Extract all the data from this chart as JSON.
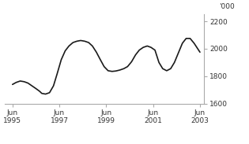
{
  "ylabel": "'000",
  "ylim": [
    1600,
    2250
  ],
  "yticks": [
    1600,
    1800,
    2000,
    2200
  ],
  "xtick_positions": [
    1995.417,
    1997.417,
    1999.417,
    2001.417,
    2003.417
  ],
  "xtick_labels": [
    "Jun\n1995",
    "Jun\n1997",
    "Jun\n1999",
    "Jun\n2001",
    "Jun\n2003"
  ],
  "line_color": "#1a1a1a",
  "line_width": 1.2,
  "axis_color": "#aaaaaa",
  "background_color": "#ffffff",
  "data_x": [
    1995.42,
    1995.58,
    1995.75,
    1995.92,
    1996.08,
    1996.25,
    1996.42,
    1996.58,
    1996.67,
    1996.83,
    1997.0,
    1997.17,
    1997.33,
    1997.5,
    1997.67,
    1997.83,
    1998.0,
    1998.17,
    1998.33,
    1998.5,
    1998.67,
    1998.83,
    1999.0,
    1999.17,
    1999.33,
    1999.5,
    1999.67,
    1999.83,
    2000.0,
    2000.17,
    2000.33,
    2000.5,
    2000.67,
    2000.83,
    2001.0,
    2001.17,
    2001.33,
    2001.5,
    2001.67,
    2001.83,
    2002.0,
    2002.17,
    2002.33,
    2002.5,
    2002.67,
    2002.83,
    2003.0,
    2003.17,
    2003.42
  ],
  "data_y": [
    1740,
    1755,
    1765,
    1760,
    1750,
    1730,
    1710,
    1690,
    1675,
    1670,
    1680,
    1730,
    1820,
    1920,
    1985,
    2020,
    2045,
    2055,
    2060,
    2055,
    2045,
    2020,
    1975,
    1920,
    1870,
    1840,
    1835,
    1838,
    1845,
    1855,
    1870,
    1905,
    1955,
    1990,
    2010,
    2020,
    2010,
    1990,
    1900,
    1855,
    1840,
    1855,
    1900,
    1970,
    2040,
    2075,
    2075,
    2040,
    1975
  ],
  "xlim": [
    1995.1,
    2003.6
  ]
}
